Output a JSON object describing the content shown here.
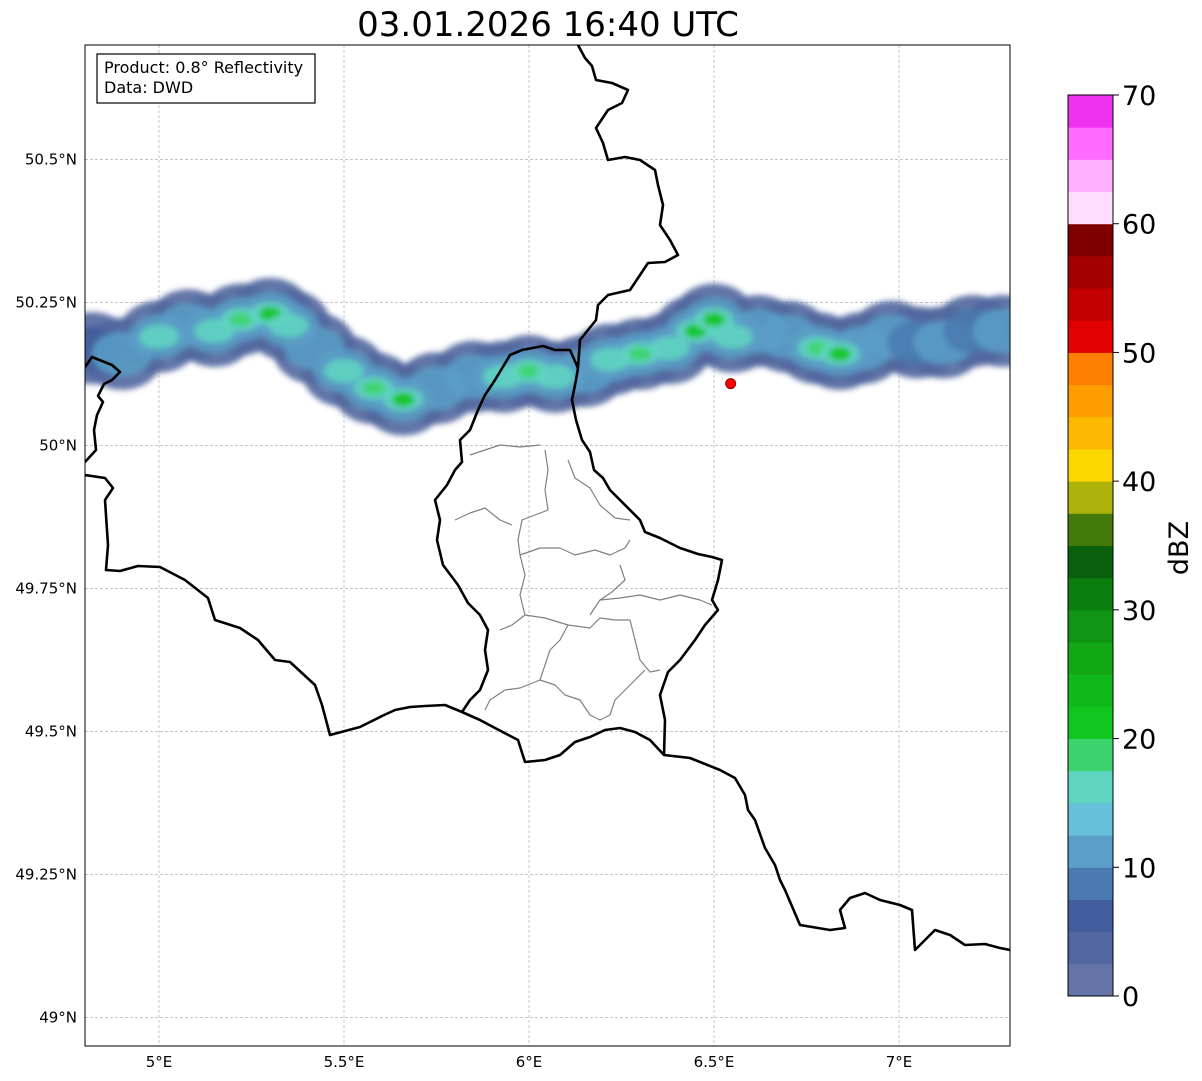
{
  "map": {
    "title": "03.01.2026 16:40 UTC",
    "info_lines": [
      "Product: 0.8° Reflectivity",
      "Data: DWD"
    ],
    "lon_range": [
      4.8,
      7.3
    ],
    "lat_range": [
      48.95,
      50.7
    ],
    "lon_ticks": [
      5.0,
      5.5,
      6.0,
      6.5,
      7.0
    ],
    "lon_tick_labels": [
      "5°E",
      "5.5°E",
      "6°E",
      "6.5°E",
      "7°E"
    ],
    "lat_ticks": [
      49.0,
      49.25,
      49.5,
      49.75,
      50.0,
      50.25,
      50.5
    ],
    "lat_tick_labels": [
      "49°N",
      "49.25°N",
      "49.5°N",
      "49.75°N",
      "50°N",
      "50.25°N",
      "50.5°N"
    ],
    "marker": {
      "lon": 6.545,
      "lat": 50.108,
      "color": "#ff0000"
    },
    "grid": true
  },
  "colorbar": {
    "label": "dBZ",
    "min": 0,
    "max": 70,
    "step": 2.5,
    "tick_values": [
      0,
      10,
      20,
      30,
      40,
      50,
      60,
      70
    ],
    "tick_labels": [
      "0",
      "10",
      "20",
      "30",
      "40",
      "50",
      "60",
      "70"
    ],
    "colors": [
      "#6574a6",
      "#52679f",
      "#435e9f",
      "#4a7aaf",
      "#5a9fc7",
      "#66c0d9",
      "#5fd4c1",
      "#3dd46f",
      "#10c51d",
      "#10b81b",
      "#11a715",
      "#0f9414",
      "#0b7e0f",
      "#095f0b",
      "#437a0a",
      "#adb30b",
      "#fcd800",
      "#fdb800",
      "#fe9d00",
      "#fe7e00",
      "#e30000",
      "#c20000",
      "#a30000",
      "#800000",
      "#ffdcfe",
      "#ffb0fe",
      "#ff6cff",
      "#ee32ee"
    ]
  },
  "radar_echoes": {
    "units": "dBZ",
    "bands": [
      {
        "points": [
          [
            4.82,
            50.17,
            6
          ],
          [
            4.9,
            50.16,
            12
          ],
          [
            5.0,
            50.19,
            14
          ],
          [
            5.08,
            50.21,
            12
          ],
          [
            5.15,
            50.2,
            16
          ],
          [
            5.22,
            50.22,
            18
          ],
          [
            5.3,
            50.23,
            22
          ],
          [
            5.35,
            50.21,
            16
          ],
          [
            5.42,
            50.17,
            12
          ],
          [
            5.5,
            50.13,
            14
          ],
          [
            5.58,
            50.1,
            18
          ],
          [
            5.66,
            50.08,
            20
          ],
          [
            5.75,
            50.1,
            12
          ],
          [
            5.85,
            50.12,
            10
          ],
          [
            5.93,
            50.12,
            14
          ],
          [
            6.0,
            50.13,
            18
          ],
          [
            6.07,
            50.12,
            14
          ],
          [
            6.15,
            50.13,
            12
          ],
          [
            6.22,
            50.15,
            16
          ],
          [
            6.3,
            50.16,
            18
          ],
          [
            6.38,
            50.17,
            16
          ],
          [
            6.45,
            50.2,
            20
          ],
          [
            6.5,
            50.22,
            22
          ],
          [
            6.55,
            50.19,
            14
          ],
          [
            6.62,
            50.2,
            10
          ],
          [
            6.7,
            50.19,
            12
          ],
          [
            6.78,
            50.17,
            18
          ],
          [
            6.84,
            50.16,
            20
          ],
          [
            6.9,
            50.17,
            12
          ],
          [
            6.98,
            50.19,
            10
          ],
          [
            7.05,
            50.18,
            8
          ],
          [
            7.12,
            50.18,
            10
          ],
          [
            7.2,
            50.2,
            8
          ],
          [
            7.28,
            50.2,
            10
          ]
        ]
      }
    ]
  }
}
